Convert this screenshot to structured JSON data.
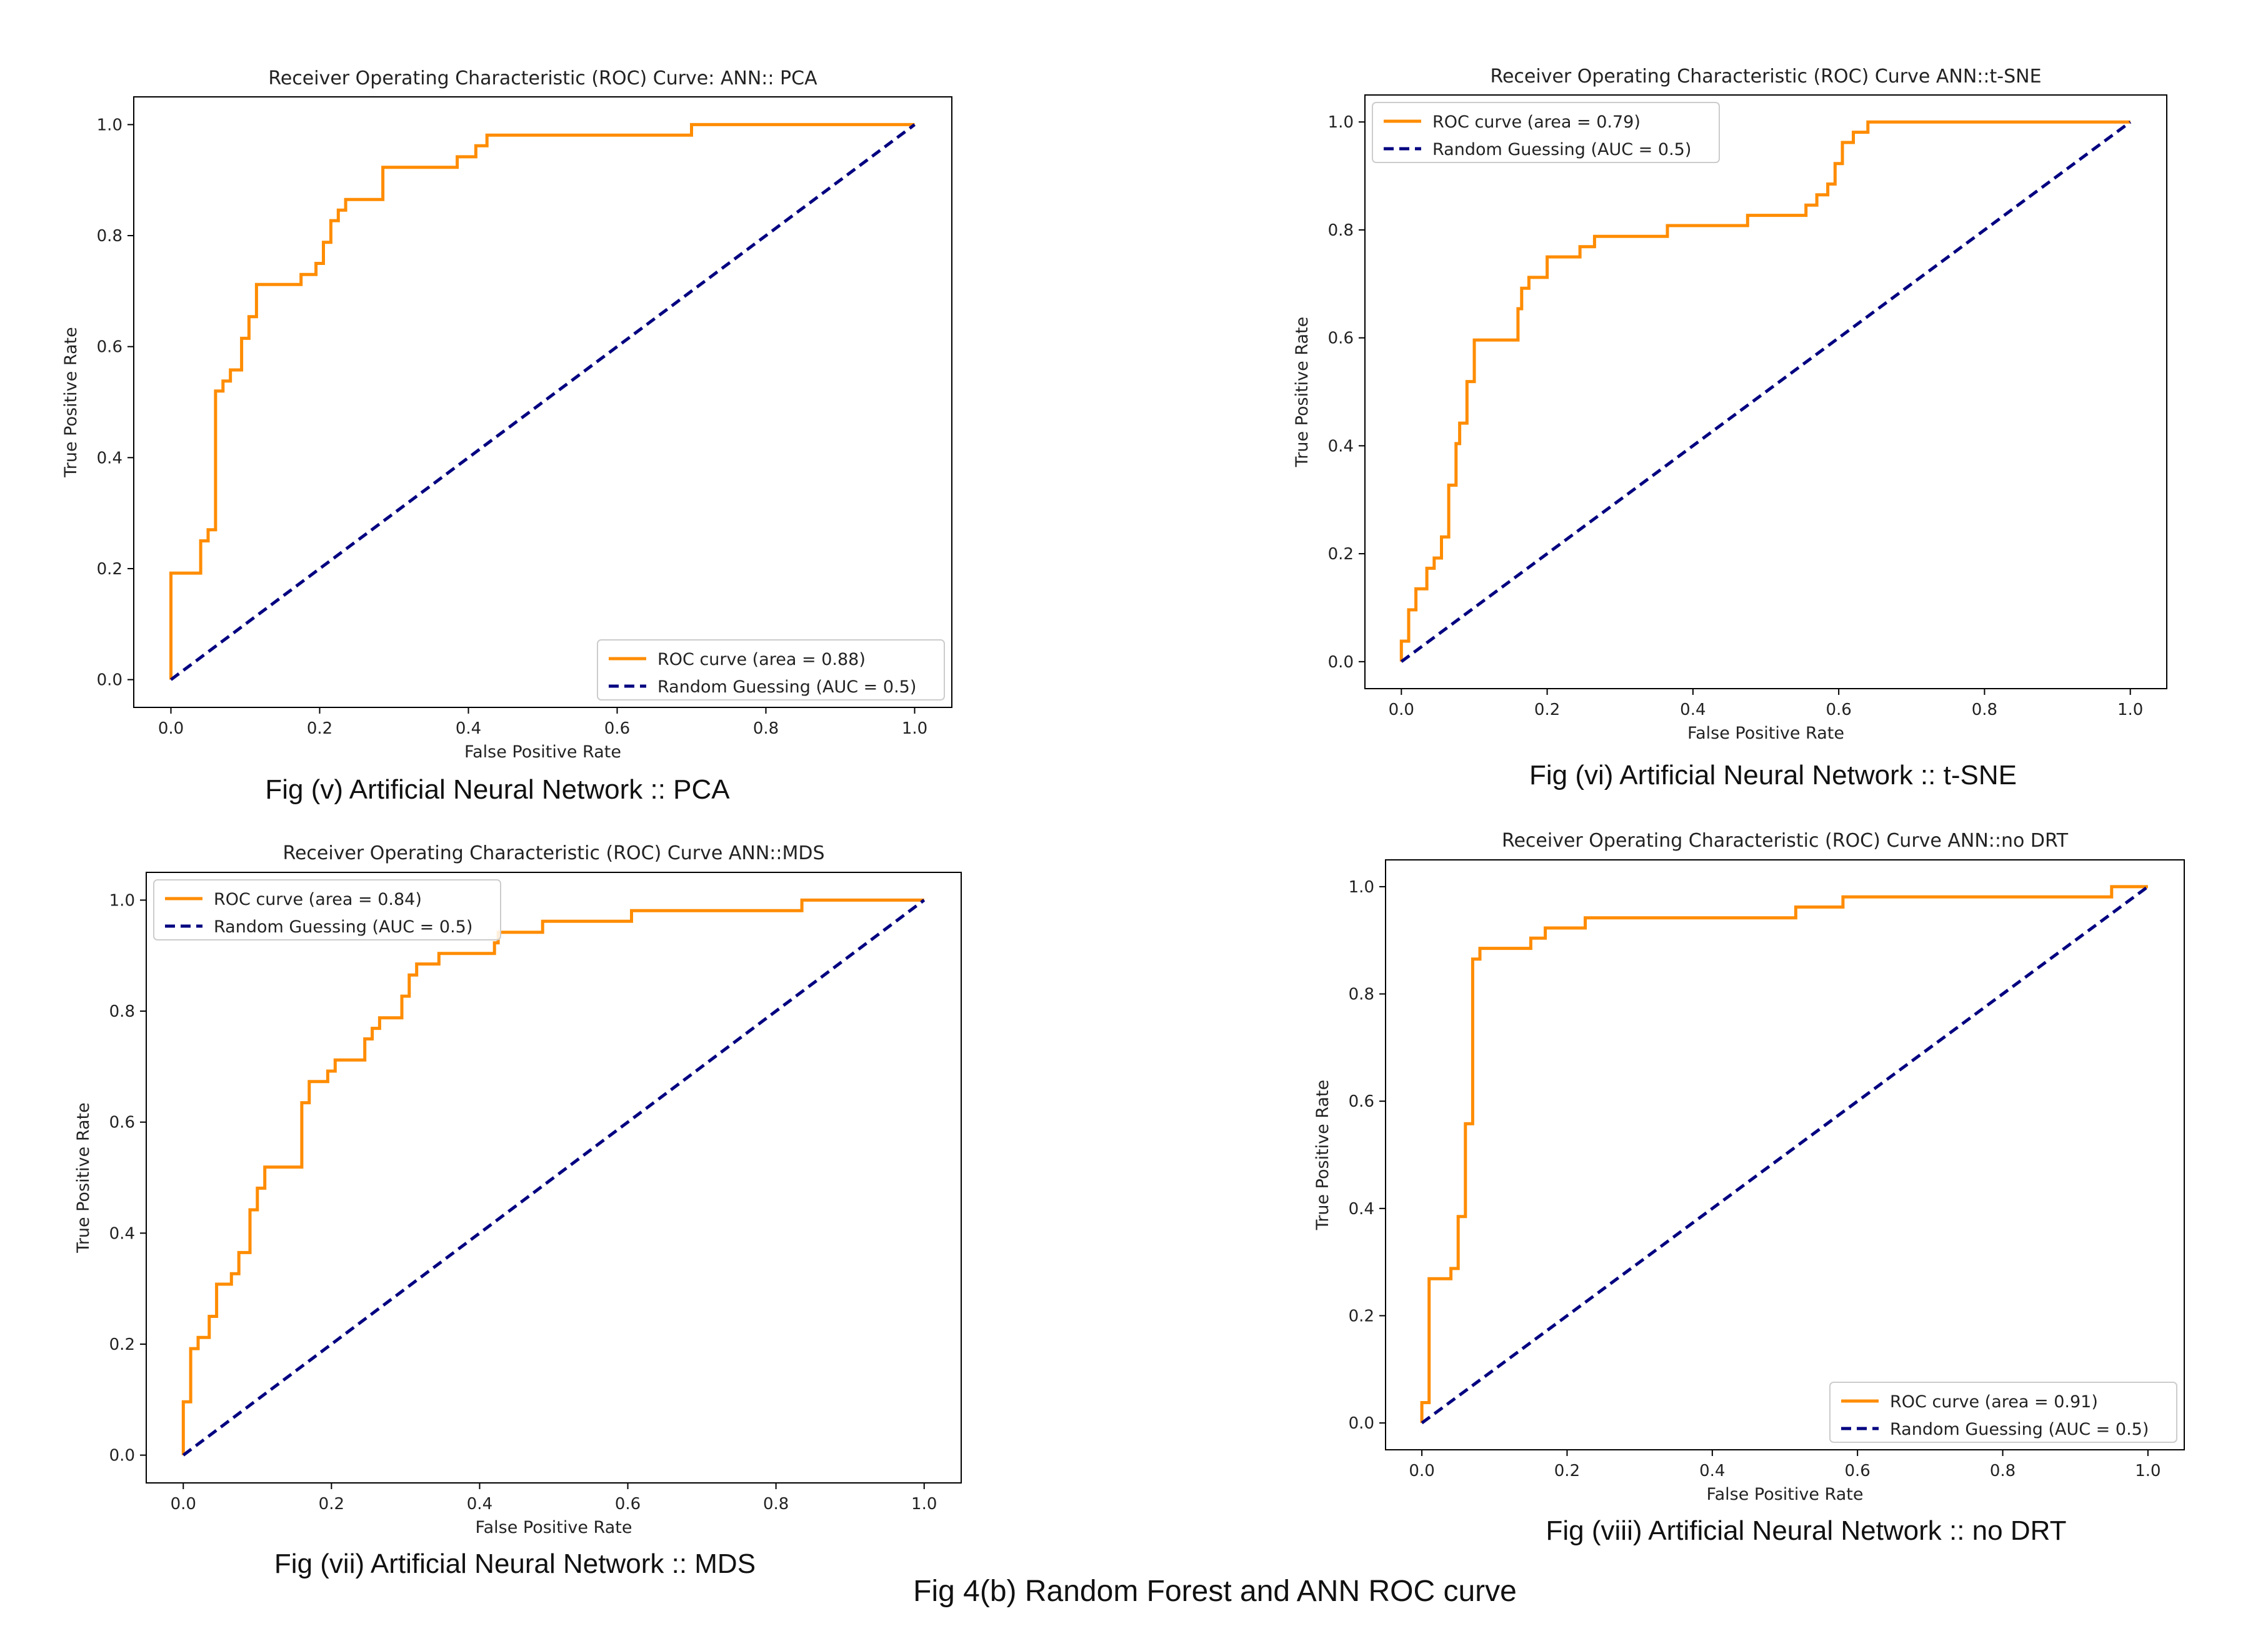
{
  "figure_caption": "Fig 4(b) Random Forest and ANN ROC curve",
  "colors": {
    "roc": "#ff8c00",
    "random": "#000080",
    "axes": "#000000"
  },
  "chart_data": [
    {
      "type": "line",
      "title": "Receiver Operating Characteristic (ROC) Curve: ANN:: PCA",
      "xlabel": "False Positive Rate",
      "ylabel": "True Positive Rate",
      "xlim": [
        -0.05,
        1.05
      ],
      "ylim": [
        -0.05,
        1.05
      ],
      "xticks": [
        "0.0",
        "0.2",
        "0.4",
        "0.6",
        "0.8",
        "1.0"
      ],
      "yticks": [
        "0.0",
        "0.2",
        "0.4",
        "0.6",
        "0.8",
        "1.0"
      ],
      "legend_position": "lower-right",
      "caption": "Fig (v) Artificial Neural Network :: PCA",
      "series": [
        {
          "name": "ROC curve (area = 0.88)",
          "style": "solid",
          "x": [
            0,
            0,
            0.04,
            0.04,
            0.05,
            0.05,
            0.06,
            0.06,
            0.07,
            0.07,
            0.08,
            0.08,
            0.095,
            0.095,
            0.105,
            0.105,
            0.115,
            0.115,
            0.175,
            0.175,
            0.195,
            0.195,
            0.205,
            0.205,
            0.215,
            0.215,
            0.225,
            0.225,
            0.235,
            0.235,
            0.285,
            0.285,
            0.385,
            0.385,
            0.41,
            0.41,
            0.425,
            0.425,
            0.7,
            0.7,
            1.0
          ],
          "y": [
            0,
            0.192,
            0.192,
            0.25,
            0.25,
            0.27,
            0.27,
            0.52,
            0.52,
            0.538,
            0.538,
            0.558,
            0.558,
            0.615,
            0.615,
            0.654,
            0.654,
            0.712,
            0.712,
            0.73,
            0.73,
            0.75,
            0.75,
            0.788,
            0.788,
            0.827,
            0.827,
            0.846,
            0.846,
            0.865,
            0.865,
            0.923,
            0.923,
            0.942,
            0.942,
            0.962,
            0.962,
            0.981,
            0.981,
            1.0,
            1.0
          ]
        },
        {
          "name": "Random Guessing (AUC = 0.5)",
          "style": "dashed",
          "x": [
            0,
            1
          ],
          "y": [
            0,
            1
          ]
        }
      ]
    },
    {
      "type": "line",
      "title": "Receiver Operating Characteristic (ROC) Curve ANN::t-SNE",
      "xlabel": "False Positive Rate",
      "ylabel": "True Positive Rate",
      "xlim": [
        -0.05,
        1.05
      ],
      "ylim": [
        -0.05,
        1.05
      ],
      "xticks": [
        "0.0",
        "0.2",
        "0.4",
        "0.6",
        "0.8",
        "1.0"
      ],
      "yticks": [
        "0.0",
        "0.2",
        "0.4",
        "0.6",
        "0.8",
        "1.0"
      ],
      "legend_position": "upper-left",
      "caption": "Fig (vi) Artificial Neural Network :: t-SNE",
      "series": [
        {
          "name": "ROC curve (area = 0.79)",
          "style": "solid",
          "x": [
            0,
            0,
            0.01,
            0.01,
            0.02,
            0.02,
            0.035,
            0.035,
            0.045,
            0.045,
            0.055,
            0.055,
            0.065,
            0.065,
            0.075,
            0.075,
            0.08,
            0.08,
            0.09,
            0.09,
            0.1,
            0.1,
            0.16,
            0.16,
            0.165,
            0.165,
            0.175,
            0.175,
            0.2,
            0.2,
            0.245,
            0.245,
            0.265,
            0.265,
            0.365,
            0.365,
            0.375,
            0.375,
            0.475,
            0.475,
            0.555,
            0.555,
            0.57,
            0.57,
            0.585,
            0.585,
            0.595,
            0.595,
            0.605,
            0.605,
            0.62,
            0.62,
            0.64,
            0.64,
            0.65,
            0.65,
            1.0
          ],
          "y": [
            0,
            0.038,
            0.038,
            0.096,
            0.096,
            0.135,
            0.135,
            0.173,
            0.173,
            0.192,
            0.192,
            0.231,
            0.231,
            0.327,
            0.327,
            0.404,
            0.404,
            0.442,
            0.442,
            0.519,
            0.519,
            0.596,
            0.596,
            0.654,
            0.654,
            0.692,
            0.692,
            0.712,
            0.712,
            0.75,
            0.75,
            0.769,
            0.769,
            0.788,
            0.788,
            0.808,
            0.808,
            0.808,
            0.808,
            0.827,
            0.827,
            0.846,
            0.846,
            0.865,
            0.865,
            0.885,
            0.885,
            0.923,
            0.923,
            0.962,
            0.962,
            0.981,
            0.981,
            1.0,
            1.0,
            1.0,
            1.0
          ]
        },
        {
          "name": "Random Guessing (AUC = 0.5)",
          "style": "dashed",
          "x": [
            0,
            1
          ],
          "y": [
            0,
            1
          ]
        }
      ]
    },
    {
      "type": "line",
      "title": "Receiver Operating Characteristic (ROC) Curve ANN::MDS",
      "xlabel": "False Positive Rate",
      "ylabel": "True Positive Rate",
      "xlim": [
        -0.05,
        1.05
      ],
      "ylim": [
        -0.05,
        1.05
      ],
      "xticks": [
        "0.0",
        "0.2",
        "0.4",
        "0.6",
        "0.8",
        "1.0"
      ],
      "yticks": [
        "0.0",
        "0.2",
        "0.4",
        "0.6",
        "0.8",
        "1.0"
      ],
      "legend_position": "upper-left",
      "caption": "Fig (vii) Artificial Neural Network :: MDS",
      "series": [
        {
          "name": "ROC curve (area = 0.84)",
          "style": "solid",
          "x": [
            0,
            0,
            0.01,
            0.01,
            0.02,
            0.02,
            0.035,
            0.035,
            0.045,
            0.045,
            0.065,
            0.065,
            0.075,
            0.075,
            0.09,
            0.09,
            0.1,
            0.1,
            0.11,
            0.11,
            0.16,
            0.16,
            0.17,
            0.17,
            0.195,
            0.195,
            0.205,
            0.205,
            0.245,
            0.245,
            0.255,
            0.255,
            0.265,
            0.265,
            0.295,
            0.295,
            0.305,
            0.305,
            0.315,
            0.315,
            0.345,
            0.345,
            0.42,
            0.42,
            0.425,
            0.425,
            0.485,
            0.485,
            0.605,
            0.605,
            0.835,
            0.835,
            1.0
          ],
          "y": [
            0,
            0.096,
            0.096,
            0.192,
            0.192,
            0.212,
            0.212,
            0.25,
            0.25,
            0.308,
            0.308,
            0.327,
            0.327,
            0.365,
            0.365,
            0.442,
            0.442,
            0.481,
            0.481,
            0.519,
            0.519,
            0.635,
            0.635,
            0.673,
            0.673,
            0.692,
            0.692,
            0.712,
            0.712,
            0.75,
            0.75,
            0.769,
            0.769,
            0.788,
            0.788,
            0.827,
            0.827,
            0.865,
            0.865,
            0.885,
            0.885,
            0.904,
            0.904,
            0.923,
            0.923,
            0.942,
            0.942,
            0.962,
            0.962,
            0.981,
            0.981,
            1.0,
            1.0
          ]
        },
        {
          "name": "Random Guessing (AUC = 0.5)",
          "style": "dashed",
          "x": [
            0,
            1
          ],
          "y": [
            0,
            1
          ]
        }
      ]
    },
    {
      "type": "line",
      "title": "Receiver Operating Characteristic (ROC) Curve ANN::no DRT",
      "xlabel": "False Positive Rate",
      "ylabel": "True Positive Rate",
      "xlim": [
        -0.05,
        1.05
      ],
      "ylim": [
        -0.05,
        1.05
      ],
      "xticks": [
        "0.0",
        "0.2",
        "0.4",
        "0.6",
        "0.8",
        "1.0"
      ],
      "yticks": [
        "0.0",
        "0.2",
        "0.4",
        "0.6",
        "0.8",
        "1.0"
      ],
      "legend_position": "lower-right",
      "caption": "Fig (viii) Artificial Neural Network :: no DRT",
      "series": [
        {
          "name": "ROC curve (area = 0.91)",
          "style": "solid",
          "x": [
            0,
            0,
            0.01,
            0.01,
            0.04,
            0.04,
            0.05,
            0.05,
            0.06,
            0.06,
            0.07,
            0.07,
            0.08,
            0.08,
            0.15,
            0.15,
            0.17,
            0.17,
            0.225,
            0.225,
            0.515,
            0.515,
            0.58,
            0.58,
            0.95,
            0.95,
            1.0
          ],
          "y": [
            0,
            0.038,
            0.038,
            0.269,
            0.269,
            0.288,
            0.288,
            0.385,
            0.385,
            0.558,
            0.558,
            0.865,
            0.865,
            0.885,
            0.885,
            0.904,
            0.904,
            0.923,
            0.923,
            0.942,
            0.942,
            0.962,
            0.962,
            0.981,
            0.981,
            1.0,
            1.0
          ]
        },
        {
          "name": "Random Guessing (AUC = 0.5)",
          "style": "dashed",
          "x": [
            0,
            1
          ],
          "y": [
            0,
            1
          ]
        }
      ]
    }
  ]
}
